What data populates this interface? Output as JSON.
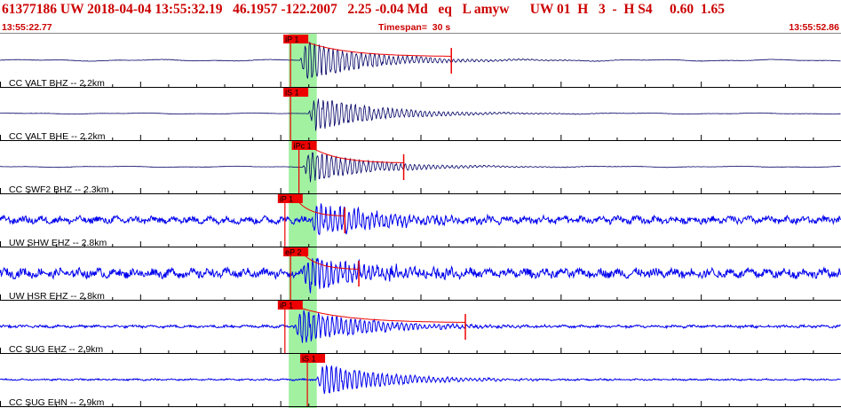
{
  "header": {
    "event_line": "61377186 UW 2018-04-04 13:55:32.19   46.1957 -122.2007   2.25 -0.04 Md   eq   L amyw      UW 01  H   3  -  H S4     0.60  1.65",
    "time_start": "13:55:22.77",
    "timespan": "Timespan=  30 s",
    "time_end": "13:55:52.86"
  },
  "colors": {
    "text_red": "#cc0000",
    "trace_dark": "#000066",
    "trace_blue": "#0000ee",
    "pick_red": "#ee0000",
    "window_green": "#90ee90",
    "grid": "#000000"
  },
  "chart_data": {
    "type": "line",
    "x_unit": "s",
    "xlim": [
      0,
      30
    ],
    "start_time": "13:55:22.77",
    "end_time": "13:55:52.86",
    "green_window": [
      10.3,
      11.3
    ],
    "channels": [
      {
        "label": "CC VALT BHZ -- 2.2km",
        "color": "#000066",
        "pick": "iP 1",
        "pick_time": 10.3,
        "coda_end": 16.1,
        "onset": 10.7,
        "peak_amp": 1.0,
        "noise": 0.06,
        "style": "bb"
      },
      {
        "label": "CC VALT BHE -- 2.2km",
        "color": "#000066",
        "pick": "iS 1",
        "pick_time": 10.3,
        "coda_end": null,
        "onset": 11.0,
        "peak_amp": 0.9,
        "noise": 0.04,
        "style": "bb"
      },
      {
        "label": "CC SWF2 BHZ -- 2.3km",
        "color": "#000066",
        "pick": "iPc 1",
        "pick_time": 10.6,
        "coda_end": 14.4,
        "onset": 10.8,
        "peak_amp": 0.8,
        "noise": 0.04,
        "style": "bb"
      },
      {
        "label": "UW SHW EHZ -- 2.8km",
        "color": "#0000ee",
        "pick": "iP 1",
        "pick_time": 10.1,
        "coda_end": 12.3,
        "onset": 11.1,
        "peak_amp": 0.9,
        "noise": 0.22,
        "style": "sp"
      },
      {
        "label": "UW HSR EHZ -- 2.8km",
        "color": "#0000ee",
        "pick": "eP 2",
        "pick_time": 10.3,
        "coda_end": 12.8,
        "onset": 10.8,
        "peak_amp": 0.9,
        "noise": 0.28,
        "style": "sp"
      },
      {
        "label": "CC SUG EHZ -- 2.9km",
        "color": "#0000ee",
        "pick": "iP 1",
        "pick_time": 10.1,
        "coda_end": 16.6,
        "onset": 10.5,
        "peak_amp": 0.9,
        "noise": 0.08,
        "style": "sp"
      },
      {
        "label": "CC SUG EHN -- 2.9km",
        "color": "#0000ee",
        "pick": "iS 1",
        "pick_time": 10.9,
        "coda_end": null,
        "onset": 11.3,
        "peak_amp": 0.8,
        "noise": 0.05,
        "style": "sp"
      }
    ]
  }
}
